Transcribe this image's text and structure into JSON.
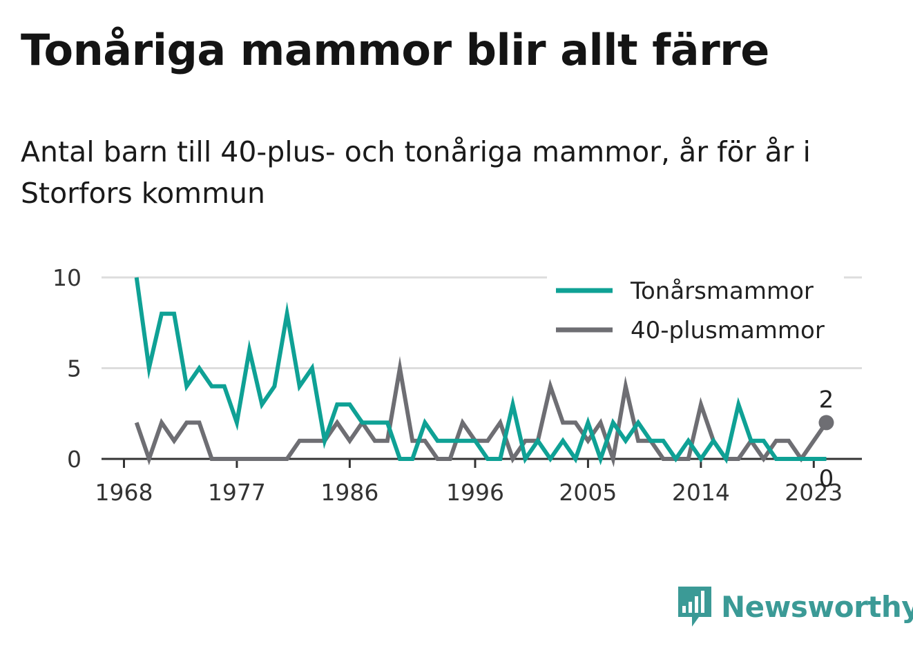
{
  "title": "Tonåriga mammor blir allt färre",
  "subtitle": "Antal barn till 40-plus- och tonåriga mammor, år för år i Storfors kommun",
  "logo_text": "Newsworthy",
  "colors": {
    "teen": "#0fa195",
    "forty": "#6e6e73",
    "grid": "#dddddd",
    "axis": "#333333",
    "logo": "#3b9a96"
  },
  "chart_data": {
    "type": "line",
    "x": [
      1969,
      1970,
      1971,
      1972,
      1973,
      1974,
      1975,
      1976,
      1977,
      1978,
      1979,
      1980,
      1981,
      1982,
      1983,
      1984,
      1985,
      1986,
      1987,
      1988,
      1989,
      1990,
      1991,
      1992,
      1993,
      1994,
      1995,
      1996,
      1997,
      1998,
      1999,
      2000,
      2001,
      2002,
      2003,
      2004,
      2005,
      2006,
      2007,
      2008,
      2009,
      2010,
      2011,
      2012,
      2013,
      2014,
      2015,
      2016,
      2017,
      2018,
      2019,
      2020,
      2021,
      2022,
      2023,
      2024
    ],
    "series": [
      {
        "name": "Tonårsmammor",
        "color": "#0fa195",
        "values": [
          10,
          5,
          8,
          8,
          4,
          5,
          4,
          4,
          2,
          6,
          3,
          4,
          8,
          4,
          5,
          1,
          3,
          3,
          2,
          2,
          2,
          0,
          0,
          2,
          1,
          1,
          1,
          1,
          0,
          0,
          3,
          0,
          1,
          0,
          1,
          0,
          2,
          0,
          2,
          1,
          2,
          1,
          1,
          0,
          1,
          0,
          1,
          0,
          3,
          1,
          1,
          0,
          0,
          0,
          0,
          0
        ]
      },
      {
        "name": "40-plusmammor",
        "color": "#6e6e73",
        "values": [
          2,
          0,
          2,
          1,
          2,
          2,
          0,
          0,
          0,
          0,
          0,
          0,
          0,
          1,
          1,
          1,
          2,
          1,
          2,
          1,
          1,
          5,
          1,
          1,
          0,
          0,
          2,
          1,
          1,
          2,
          0,
          1,
          1,
          4,
          2,
          2,
          1,
          2,
          0,
          4,
          1,
          1,
          0,
          0,
          0,
          3,
          1,
          0,
          0,
          1,
          0,
          1,
          1,
          0,
          1,
          2
        ]
      }
    ],
    "x_ticks": [
      "1968",
      "1977",
      "1986",
      "1996",
      "2005",
      "2014",
      "2023"
    ],
    "y_ticks": [
      "0",
      "5",
      "10"
    ],
    "ylim": [
      0,
      10
    ],
    "end_labels": {
      "forty": "2",
      "teen": "0"
    },
    "legend_position": "top-right",
    "grid": "horizontal"
  }
}
